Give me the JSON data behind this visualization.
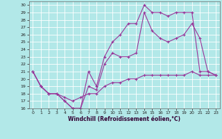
{
  "xlabel": "Windchill (Refroidissement éolien,°C)",
  "bg_color": "#b2e8e8",
  "grid_color": "#ffffff",
  "line_color": "#993399",
  "xlim": [
    -0.5,
    23.5
  ],
  "ylim": [
    16,
    30.5
  ],
  "xticks": [
    0,
    1,
    2,
    3,
    4,
    5,
    6,
    7,
    8,
    9,
    10,
    11,
    12,
    13,
    14,
    15,
    16,
    17,
    18,
    19,
    20,
    21,
    22,
    23
  ],
  "yticks": [
    16,
    17,
    18,
    19,
    20,
    21,
    22,
    23,
    24,
    25,
    26,
    27,
    28,
    29,
    30
  ],
  "line1_x": [
    0,
    1,
    2,
    3,
    4,
    5,
    6,
    7,
    8,
    9,
    10,
    11,
    12,
    13,
    14,
    15,
    16,
    17,
    18,
    19,
    20,
    21,
    22,
    23
  ],
  "line1_y": [
    21,
    19,
    18,
    18,
    17,
    16,
    16,
    21,
    19,
    23,
    25,
    26,
    27.5,
    27.5,
    30,
    29,
    29,
    28.5,
    29,
    29,
    29,
    21,
    21,
    20.5
  ],
  "line2_x": [
    0,
    1,
    2,
    3,
    4,
    5,
    6,
    7,
    8,
    9,
    10,
    11,
    12,
    13,
    14,
    15,
    16,
    17,
    18,
    19,
    20,
    21,
    22,
    23
  ],
  "line2_y": [
    21,
    19,
    18,
    18,
    17,
    16,
    16,
    19,
    18.5,
    22,
    23.5,
    23,
    23,
    23.5,
    29,
    26.5,
    25.5,
    25,
    25.5,
    26,
    27.5,
    25.5,
    21,
    20.5
  ],
  "line3_x": [
    0,
    1,
    2,
    3,
    4,
    5,
    6,
    7,
    8,
    9,
    10,
    11,
    12,
    13,
    14,
    15,
    16,
    17,
    18,
    19,
    20,
    21,
    22,
    23
  ],
  "line3_y": [
    21,
    19,
    18,
    18,
    17.5,
    17,
    17.5,
    18,
    18,
    19,
    19.5,
    19.5,
    20,
    20,
    20.5,
    20.5,
    20.5,
    20.5,
    20.5,
    20.5,
    21,
    20.5,
    20.5,
    20.5
  ]
}
